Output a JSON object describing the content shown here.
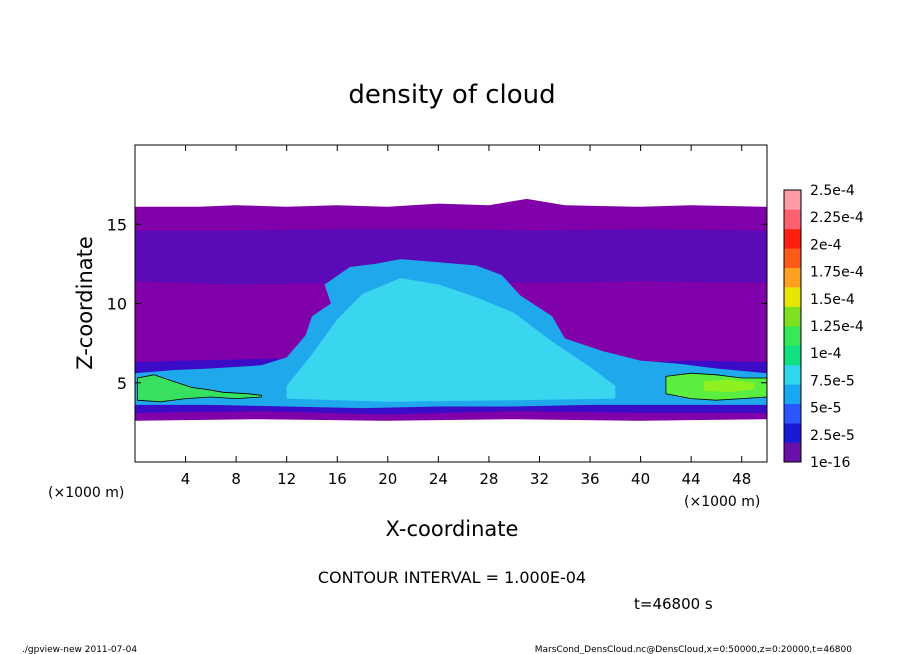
{
  "chart_data": {
    "type": "heatmap",
    "title": "density of cloud",
    "xlabel": "X-coordinate",
    "ylabel": "Z-coordinate",
    "x_unit": "(×1000 m)",
    "x_unit_right": "(×1000 m)",
    "xlim": [
      0,
      50
    ],
    "ylim": [
      0,
      20
    ],
    "x_ticks": [
      4,
      8,
      12,
      16,
      20,
      24,
      28,
      32,
      36,
      40,
      44,
      48
    ],
    "y_ticks": [
      5,
      10,
      15
    ],
    "contour_interval_text": "CONTOUR INTERVAL = 1.000E-04",
    "time_text": "t=46800 s",
    "footer_left": "./gpview-new  2011-07-04",
    "footer_right": "MarsCond_DensCloud.nc@DensCloud,x=0:50000,z=0:20000,t=46800",
    "colorbar": {
      "labels": [
        "1e-16",
        "2.5e-5",
        "5e-5",
        "7.5e-5",
        "1e-4",
        "1.25e-4",
        "1.5e-4",
        "1.75e-4",
        "2e-4",
        "2.25e-4",
        "2.5e-4"
      ],
      "colors": [
        "#6a0fa8",
        "#1a1ad6",
        "#2b55ff",
        "#18a8f2",
        "#2ed6ee",
        "#10e080",
        "#38e858",
        "#7ee020",
        "#e6e600",
        "#ffa020",
        "#ff5a18",
        "#ff2010",
        "#ff6070",
        "#ff9aa8"
      ]
    },
    "regions": [
      {
        "name": "background-layer",
        "level": "1e-16",
        "color": "#8000aa",
        "top": [
          [
            0,
            16.1
          ],
          [
            5,
            16.1
          ],
          [
            8,
            16.2
          ],
          [
            12,
            16.1
          ],
          [
            16,
            16.2
          ],
          [
            20,
            16.1
          ],
          [
            24,
            16.3
          ],
          [
            28,
            16.2
          ],
          [
            31,
            16.6
          ],
          [
            34,
            16.2
          ],
          [
            40,
            16.1
          ],
          [
            44,
            16.2
          ],
          [
            50,
            16.1
          ]
        ],
        "bottom": [
          [
            0,
            2.6
          ],
          [
            10,
            2.7
          ],
          [
            20,
            2.6
          ],
          [
            30,
            2.7
          ],
          [
            40,
            2.6
          ],
          [
            50,
            2.7
          ]
        ]
      },
      {
        "name": "upper-band",
        "level": "2.5e-5",
        "color": "#5b0ab8",
        "top": [
          [
            0,
            14.6
          ],
          [
            8,
            14.6
          ],
          [
            16,
            14.7
          ],
          [
            24,
            14.7
          ],
          [
            32,
            14.6
          ],
          [
            40,
            14.7
          ],
          [
            50,
            14.6
          ]
        ],
        "bottom": [
          [
            0,
            11.4
          ],
          [
            8,
            11.2
          ],
          [
            16,
            11.3
          ],
          [
            24,
            11.4
          ],
          [
            32,
            11.3
          ],
          [
            40,
            11.4
          ],
          [
            50,
            11.3
          ]
        ]
      },
      {
        "name": "lower-band",
        "level": "2.5e-5",
        "color": "#3a0cc8",
        "top": [
          [
            0,
            6.3
          ],
          [
            4,
            6.4
          ],
          [
            10,
            6.5
          ],
          [
            16,
            6.6
          ],
          [
            24,
            6.5
          ],
          [
            32,
            6.4
          ],
          [
            40,
            6.3
          ],
          [
            44,
            6.4
          ],
          [
            50,
            6.3
          ]
        ],
        "bottom": [
          [
            0,
            3.1
          ],
          [
            10,
            3.2
          ],
          [
            20,
            3.0
          ],
          [
            30,
            3.2
          ],
          [
            40,
            3.1
          ],
          [
            50,
            3.1
          ]
        ]
      },
      {
        "name": "main-cloud",
        "level": "7.5e-5",
        "color": "#20a8ec",
        "top": [
          [
            0,
            5.6
          ],
          [
            3,
            5.8
          ],
          [
            6,
            5.9
          ],
          [
            10,
            6.1
          ],
          [
            12,
            6.6
          ],
          [
            13.5,
            8.0
          ],
          [
            14,
            9.2
          ],
          [
            15.5,
            10.0
          ],
          [
            15,
            11.2
          ],
          [
            17,
            12.3
          ],
          [
            19,
            12.5
          ],
          [
            21,
            12.8
          ],
          [
            24,
            12.6
          ],
          [
            27,
            12.4
          ],
          [
            29,
            11.8
          ],
          [
            30.5,
            10.5
          ],
          [
            33,
            9.2
          ],
          [
            34,
            7.8
          ],
          [
            37,
            7.0
          ],
          [
            40,
            6.4
          ],
          [
            43,
            6.2
          ],
          [
            46,
            5.9
          ],
          [
            50,
            5.6
          ]
        ],
        "bottom": [
          [
            0,
            3.6
          ],
          [
            6,
            3.6
          ],
          [
            12,
            3.5
          ],
          [
            18,
            3.4
          ],
          [
            24,
            3.5
          ],
          [
            30,
            3.5
          ],
          [
            36,
            3.6
          ],
          [
            42,
            3.6
          ],
          [
            50,
            3.6
          ]
        ]
      },
      {
        "name": "cloud-core",
        "level": "1e-4",
        "color": "#3ad6f0",
        "top": [
          [
            12,
            4.8
          ],
          [
            14,
            6.8
          ],
          [
            16,
            9.0
          ],
          [
            18,
            10.6
          ],
          [
            21,
            11.6
          ],
          [
            24,
            11.2
          ],
          [
            27,
            10.4
          ],
          [
            30,
            9.4
          ],
          [
            33,
            7.6
          ],
          [
            36,
            6.0
          ],
          [
            38,
            4.8
          ]
        ],
        "bottom": [
          [
            12,
            4.0
          ],
          [
            20,
            3.8
          ],
          [
            30,
            3.9
          ],
          [
            38,
            4.0
          ]
        ]
      },
      {
        "name": "left-green-patch",
        "level": "1.25e-4",
        "color": "#38e060",
        "top": [
          [
            0.2,
            5.3
          ],
          [
            1.5,
            5.5
          ],
          [
            3,
            5.1
          ],
          [
            4.5,
            4.7
          ],
          [
            5.5,
            4.6
          ],
          [
            7,
            4.4
          ],
          [
            9,
            4.3
          ],
          [
            10,
            4.2
          ]
        ],
        "bottom": [
          [
            0.2,
            3.9
          ],
          [
            2,
            3.8
          ],
          [
            4,
            4.0
          ],
          [
            6,
            4.1
          ],
          [
            8,
            4.0
          ],
          [
            10,
            4.1
          ]
        ]
      },
      {
        "name": "right-green-patch",
        "level": "1.5e-4",
        "color": "#5aee40",
        "top": [
          [
            42,
            5.4
          ],
          [
            44,
            5.6
          ],
          [
            46,
            5.5
          ],
          [
            48,
            5.3
          ],
          [
            50,
            5.3
          ]
        ],
        "bottom": [
          [
            42,
            4.3
          ],
          [
            44,
            4.0
          ],
          [
            46,
            3.9
          ],
          [
            48,
            4.0
          ],
          [
            50,
            4.1
          ]
        ]
      },
      {
        "name": "right-core",
        "level": "1.75e-4",
        "color": "#8ef020",
        "top": [
          [
            45,
            5.1
          ],
          [
            47,
            5.2
          ],
          [
            49,
            5.0
          ]
        ],
        "bottom": [
          [
            45,
            4.5
          ],
          [
            47,
            4.4
          ],
          [
            49,
            4.6
          ]
        ]
      }
    ]
  }
}
